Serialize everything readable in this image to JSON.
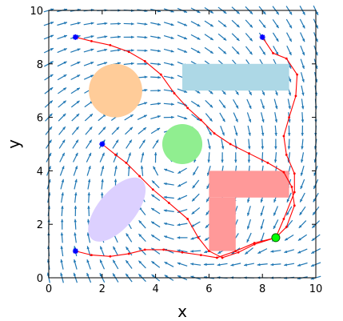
{
  "chart_data": {
    "type": "line",
    "title": "",
    "xlabel": "x",
    "ylabel": "y",
    "xlim": [
      0,
      10
    ],
    "ylim": [
      0,
      10
    ],
    "xticks": [
      "0",
      "2",
      "4",
      "6",
      "8",
      "10"
    ],
    "yticks": [
      "0",
      "2",
      "4",
      "6",
      "8",
      "10"
    ],
    "grid": false,
    "vector_field": {
      "grid_spacing": 0.5,
      "color": "#1f77b4",
      "vortex_center": [
        5,
        5
      ],
      "goal": [
        8.5,
        1.5
      ]
    },
    "obstacles": [
      {
        "shape": "circle",
        "center": [
          2.5,
          7.0
        ],
        "radius": 1.0,
        "color": "#ffcc99"
      },
      {
        "shape": "circle",
        "center": [
          5.0,
          5.0
        ],
        "radius": 0.75,
        "color": "#90ee90"
      },
      {
        "shape": "rectangle",
        "x": [
          5.0,
          9.0
        ],
        "y": [
          7.0,
          8.0
        ],
        "color": "#add8e6"
      },
      {
        "shape": "ellipse",
        "center": [
          2.55,
          2.55
        ],
        "rx": 1.45,
        "ry": 0.7,
        "angle_deg": 50,
        "color": "#dcd0ff"
      },
      {
        "shape": "l-shape",
        "color": "#ff9999",
        "parts": [
          {
            "x": [
              6.0,
              9.0
            ],
            "y": [
              3.0,
              4.0
            ]
          },
          {
            "x": [
              6.0,
              7.0
            ],
            "y": [
              1.0,
              3.0
            ]
          }
        ]
      }
    ],
    "start_points": [
      [
        1,
        9
      ],
      [
        8,
        9
      ],
      [
        2,
        5
      ],
      [
        1,
        1
      ]
    ],
    "start_marker_color": "#0000ff",
    "goal_marker": {
      "point": [
        8.5,
        1.5
      ],
      "color": "#00ff00"
    },
    "path_color": "#ff0000",
    "series": [
      {
        "points": [
          [
            1,
            9
          ],
          [
            1.6,
            8.85
          ],
          [
            2.3,
            8.7
          ],
          [
            3.0,
            8.45
          ],
          [
            3.6,
            8.1
          ],
          [
            4.2,
            7.6
          ],
          [
            4.7,
            6.9
          ],
          [
            5.2,
            6.35
          ],
          [
            5.7,
            5.9
          ],
          [
            6.2,
            5.4
          ],
          [
            6.8,
            5.0
          ],
          [
            7.5,
            4.65
          ],
          [
            8.2,
            4.3
          ],
          [
            8.8,
            3.95
          ],
          [
            9.1,
            3.4
          ],
          [
            9.2,
            2.7
          ],
          [
            8.9,
            1.9
          ],
          [
            8.5,
            1.5
          ]
        ]
      },
      {
        "points": [
          [
            8,
            9
          ],
          [
            8.4,
            8.4
          ],
          [
            8.9,
            8.2
          ],
          [
            9.3,
            7.6
          ],
          [
            9.25,
            6.8
          ],
          [
            9.0,
            6.0
          ],
          [
            8.8,
            5.3
          ],
          [
            8.9,
            4.6
          ],
          [
            9.2,
            3.9
          ],
          [
            9.2,
            3.2
          ],
          [
            8.8,
            2.2
          ],
          [
            8.5,
            1.5
          ]
        ]
      },
      {
        "points": [
          [
            2,
            5
          ],
          [
            2.5,
            4.6
          ],
          [
            2.9,
            4.3
          ],
          [
            3.4,
            3.8
          ],
          [
            3.9,
            3.3
          ],
          [
            4.5,
            2.8
          ],
          [
            5.2,
            2.2
          ],
          [
            5.6,
            1.5
          ],
          [
            6.0,
            1.0
          ],
          [
            6.5,
            0.75
          ],
          [
            7.1,
            0.95
          ],
          [
            7.7,
            1.25
          ],
          [
            8.5,
            1.5
          ]
        ]
      },
      {
        "points": [
          [
            1,
            1
          ],
          [
            1.6,
            0.85
          ],
          [
            2.3,
            0.8
          ],
          [
            3.0,
            0.9
          ],
          [
            3.6,
            1.05
          ],
          [
            4.3,
            1.05
          ],
          [
            5.0,
            0.95
          ],
          [
            5.7,
            0.85
          ],
          [
            6.3,
            0.75
          ],
          [
            7.0,
            1.0
          ],
          [
            7.7,
            1.3
          ],
          [
            8.5,
            1.5
          ]
        ]
      }
    ]
  }
}
